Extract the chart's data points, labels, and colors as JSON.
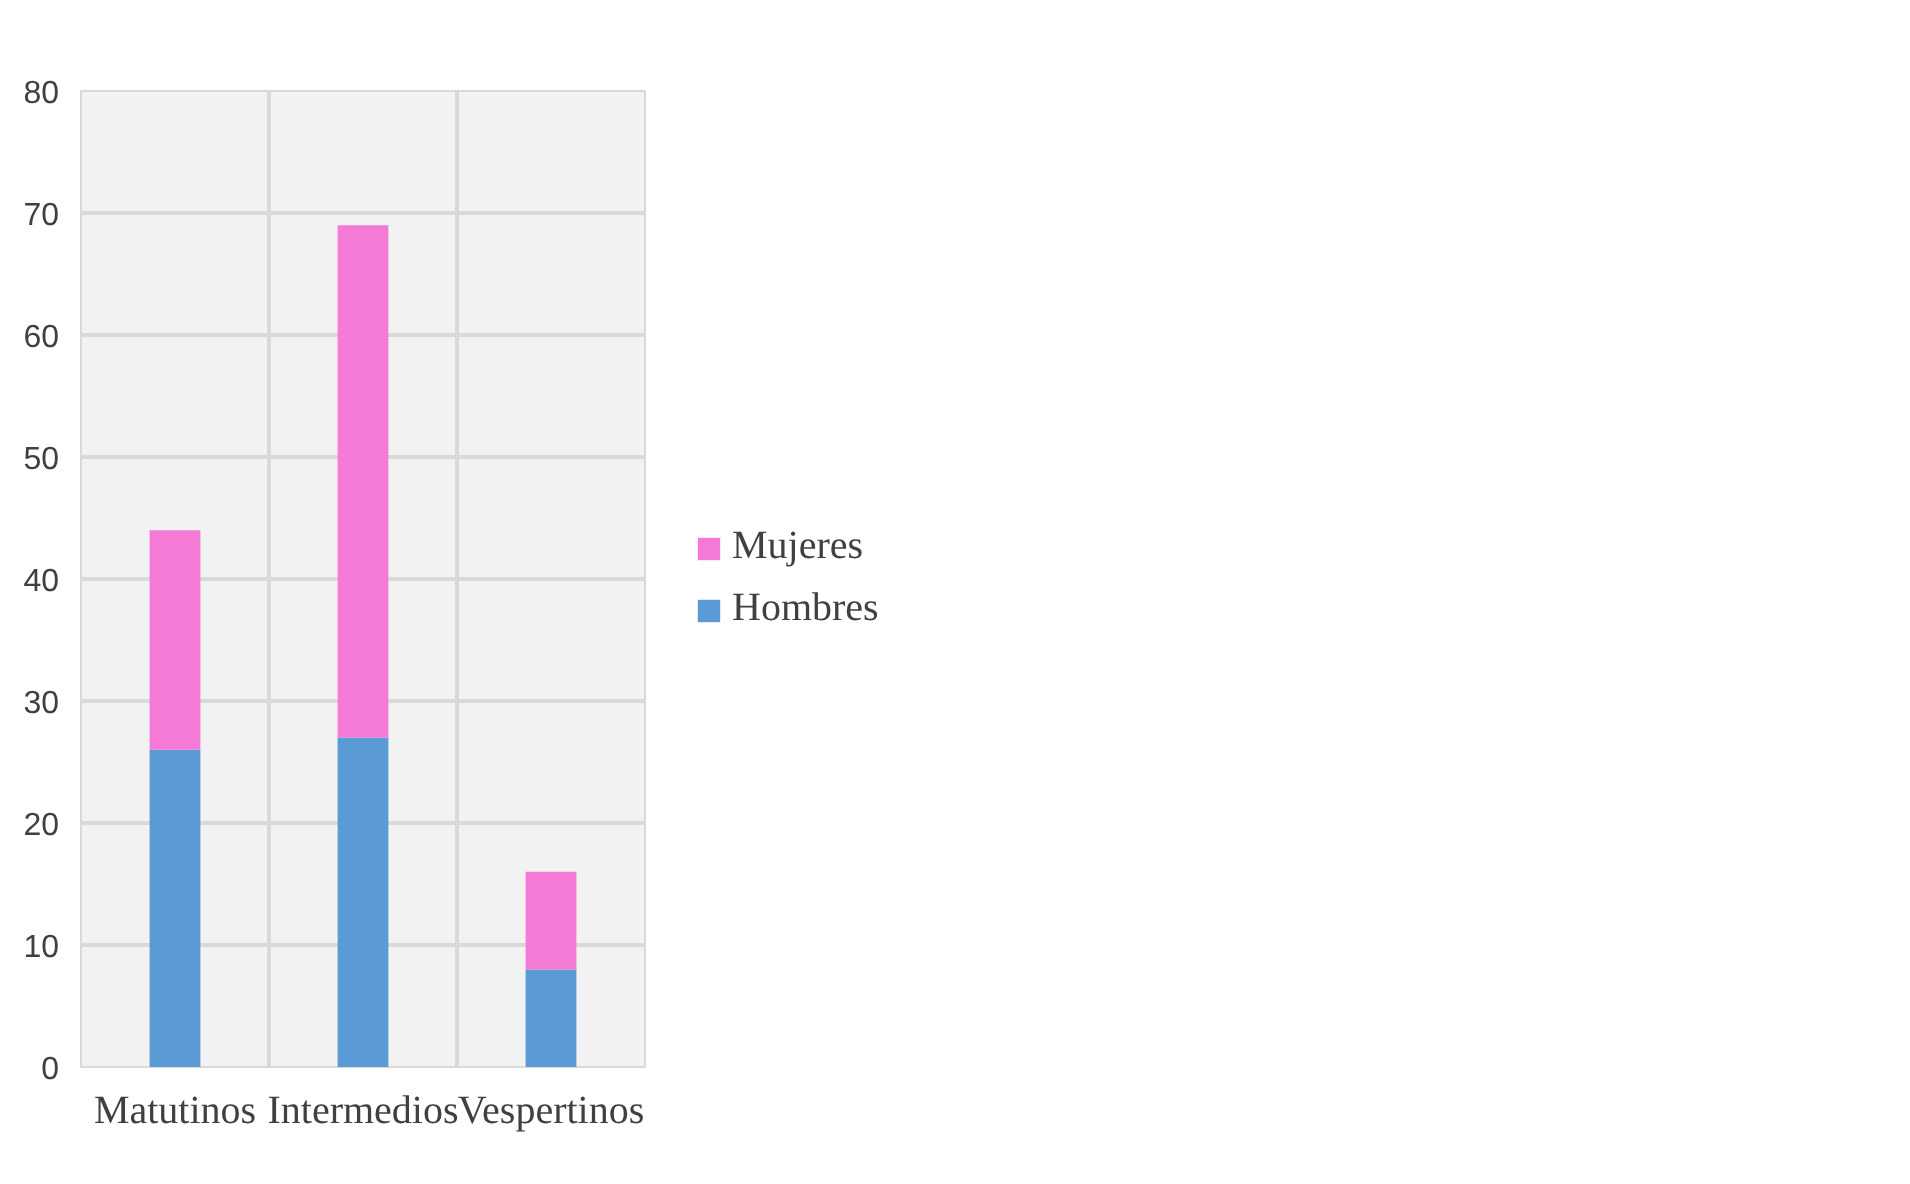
{
  "chart_data": {
    "type": "bar",
    "stacked": true,
    "categories": [
      "Matutinos",
      "Intermedios",
      "Vespertinos"
    ],
    "series": [
      {
        "name": "Hombres",
        "color": "#5b9bd5",
        "values": [
          26,
          27,
          8
        ]
      },
      {
        "name": "Mujeres",
        "color": "#f47ad6",
        "values": [
          18,
          42,
          8
        ]
      }
    ],
    "ylim": [
      0,
      80
    ],
    "yticks": [
      0,
      10,
      20,
      30,
      40,
      50,
      60,
      70,
      80
    ],
    "grid": true,
    "legend": "right"
  }
}
